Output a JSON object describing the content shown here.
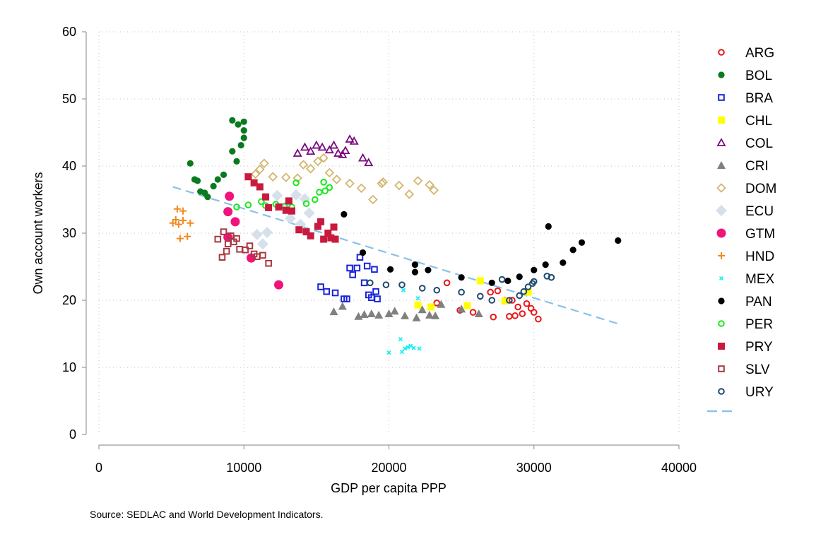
{
  "source_note": "Source: SEDLAC and World Development Indicators.",
  "chart_data": {
    "type": "scatter",
    "title": "",
    "xlabel": "GDP per capita PPP",
    "ylabel": "Own account workers",
    "xlim": [
      0,
      40000
    ],
    "ylim": [
      0,
      60
    ],
    "xticks": [
      0,
      10000,
      20000,
      30000,
      40000
    ],
    "yticks": [
      0,
      10,
      20,
      30,
      40,
      50,
      60
    ],
    "grid": "dotted",
    "legend_position": "right",
    "series": [
      {
        "name": "ARG",
        "marker": "hollow-circle",
        "color": "#e8161b",
        "points": [
          [
            23300,
            19.6
          ],
          [
            24000,
            22.6
          ],
          [
            24900,
            18.5
          ],
          [
            25800,
            18.2
          ],
          [
            27000,
            21.2
          ],
          [
            27200,
            17.5
          ],
          [
            27500,
            21.4
          ],
          [
            28000,
            20.0
          ],
          [
            28300,
            17.6
          ],
          [
            28500,
            20.0
          ],
          [
            28700,
            17.7
          ],
          [
            28900,
            19.0
          ],
          [
            29200,
            18.0
          ],
          [
            29500,
            19.5
          ],
          [
            29800,
            18.8
          ],
          [
            30000,
            18.2
          ],
          [
            30300,
            17.2
          ]
        ]
      },
      {
        "name": "BOL",
        "marker": "circle",
        "color": "#0a7a1e",
        "points": [
          [
            6300,
            40.4
          ],
          [
            6600,
            38.0
          ],
          [
            6800,
            37.8
          ],
          [
            7000,
            36.2
          ],
          [
            7300,
            36.0
          ],
          [
            7500,
            35.4
          ],
          [
            7900,
            37.0
          ],
          [
            8200,
            38.0
          ],
          [
            8600,
            38.7
          ],
          [
            9000,
            35.4
          ],
          [
            9200,
            42.2
          ],
          [
            9200,
            46.8
          ],
          [
            9500,
            40.7
          ],
          [
            9600,
            46.2
          ],
          [
            9800,
            43.1
          ],
          [
            10000,
            46.6
          ],
          [
            10000,
            45.3
          ],
          [
            10000,
            44.2
          ]
        ]
      },
      {
        "name": "BRA",
        "marker": "hollow-square",
        "color": "#1a24d8",
        "points": [
          [
            15300,
            22.0
          ],
          [
            15700,
            21.3
          ],
          [
            16300,
            21.1
          ],
          [
            16900,
            20.2
          ],
          [
            17100,
            20.2
          ],
          [
            17300,
            24.8
          ],
          [
            17500,
            23.8
          ],
          [
            17800,
            24.8
          ],
          [
            18000,
            26.4
          ],
          [
            18300,
            22.6
          ],
          [
            18500,
            25.1
          ],
          [
            18600,
            20.8
          ],
          [
            18800,
            20.4
          ],
          [
            19000,
            24.6
          ],
          [
            19100,
            21.3
          ],
          [
            19200,
            20.2
          ]
        ]
      },
      {
        "name": "CHL",
        "marker": "square",
        "color": "#ffff00",
        "points": [
          [
            22000,
            19.3
          ],
          [
            22900,
            19.0
          ],
          [
            25400,
            19.2
          ],
          [
            26300,
            22.9
          ],
          [
            28000,
            19.9
          ],
          [
            29600,
            21.2
          ]
        ]
      },
      {
        "name": "COL",
        "marker": "hollow-triangle",
        "color": "#7a0a7e",
        "points": [
          [
            13700,
            41.9
          ],
          [
            14200,
            42.8
          ],
          [
            14600,
            42.2
          ],
          [
            15000,
            43.1
          ],
          [
            15400,
            42.8
          ],
          [
            15900,
            42.4
          ],
          [
            16200,
            43.1
          ],
          [
            16500,
            41.9
          ],
          [
            16800,
            41.7
          ],
          [
            17000,
            42.3
          ],
          [
            17300,
            44.0
          ],
          [
            17600,
            43.7
          ],
          [
            18200,
            41.2
          ],
          [
            18600,
            40.5
          ]
        ]
      },
      {
        "name": "CRI",
        "marker": "triangle",
        "color": "#808080",
        "points": [
          [
            16200,
            18.3
          ],
          [
            16800,
            19.1
          ],
          [
            17900,
            17.6
          ],
          [
            18300,
            17.9
          ],
          [
            18800,
            18.0
          ],
          [
            19300,
            17.8
          ],
          [
            20000,
            18.0
          ],
          [
            20400,
            18.4
          ],
          [
            21100,
            17.7
          ],
          [
            21900,
            17.4
          ],
          [
            22300,
            18.6
          ],
          [
            22800,
            17.8
          ],
          [
            23200,
            17.7
          ],
          [
            23600,
            19.4
          ],
          [
            25000,
            18.7
          ],
          [
            26200,
            18.0
          ]
        ]
      },
      {
        "name": "DOM",
        "marker": "hollow-diamond",
        "color": "#d2b66e",
        "points": [
          [
            10800,
            38.8
          ],
          [
            11100,
            39.5
          ],
          [
            11400,
            40.4
          ],
          [
            12000,
            38.4
          ],
          [
            12900,
            38.3
          ],
          [
            13700,
            38.2
          ],
          [
            14100,
            40.2
          ],
          [
            14600,
            39.6
          ],
          [
            15100,
            40.7
          ],
          [
            15500,
            41.2
          ],
          [
            15900,
            39.0
          ],
          [
            16400,
            38.0
          ],
          [
            17300,
            37.4
          ],
          [
            18100,
            36.7
          ],
          [
            18900,
            35.0
          ],
          [
            19500,
            37.4
          ],
          [
            19600,
            37.6
          ],
          [
            20700,
            37.1
          ],
          [
            21400,
            35.8
          ],
          [
            22000,
            37.8
          ],
          [
            22800,
            37.2
          ],
          [
            23100,
            36.4
          ]
        ]
      },
      {
        "name": "ECU",
        "marker": "diamond",
        "color": "#d6e0ea",
        "points": [
          [
            10900,
            29.8
          ],
          [
            11300,
            28.4
          ],
          [
            11600,
            30.1
          ],
          [
            12300,
            35.6
          ],
          [
            12900,
            34.0
          ],
          [
            13200,
            32.2
          ],
          [
            13600,
            35.7
          ],
          [
            13900,
            31.3
          ],
          [
            14200,
            35.1
          ],
          [
            14500,
            33.0
          ]
        ]
      },
      {
        "name": "GTM",
        "marker": "big-circle",
        "color": "#f0147a",
        "points": [
          [
            8900,
            33.2
          ],
          [
            8900,
            29.4
          ],
          [
            9000,
            35.5
          ],
          [
            9400,
            31.7
          ],
          [
            10500,
            26.3
          ],
          [
            12400,
            22.3
          ]
        ]
      },
      {
        "name": "HND",
        "marker": "plus",
        "color": "#f28a1e",
        "points": [
          [
            5100,
            31.5
          ],
          [
            5300,
            32.0
          ],
          [
            5400,
            33.6
          ],
          [
            5500,
            31.3
          ],
          [
            5600,
            29.2
          ],
          [
            5800,
            33.3
          ],
          [
            5800,
            31.9
          ],
          [
            6100,
            29.5
          ],
          [
            6300,
            31.5
          ]
        ]
      },
      {
        "name": "MEX",
        "marker": "x",
        "color": "#1ef0f0",
        "points": [
          [
            20000,
            12.2
          ],
          [
            20800,
            14.2
          ],
          [
            20900,
            12.3
          ],
          [
            21100,
            12.8
          ],
          [
            21300,
            13.0
          ],
          [
            21500,
            13.2
          ],
          [
            21700,
            12.9
          ],
          [
            22100,
            12.8
          ],
          [
            21000,
            21.5
          ],
          [
            22000,
            20.3
          ]
        ]
      },
      {
        "name": "PAN",
        "marker": "circle",
        "color": "#000000",
        "points": [
          [
            16900,
            32.8
          ],
          [
            18200,
            27.1
          ],
          [
            20100,
            24.6
          ],
          [
            21800,
            25.3
          ],
          [
            21800,
            24.2
          ],
          [
            22700,
            24.5
          ],
          [
            25000,
            23.4
          ],
          [
            27100,
            22.6
          ],
          [
            28200,
            22.9
          ],
          [
            29000,
            23.5
          ],
          [
            30000,
            24.5
          ],
          [
            30800,
            25.3
          ],
          [
            31000,
            31.0
          ],
          [
            32000,
            25.6
          ],
          [
            32700,
            27.5
          ],
          [
            33300,
            28.6
          ],
          [
            35800,
            28.9
          ]
        ]
      },
      {
        "name": "PER",
        "marker": "hollow-circle",
        "color": "#19e81e",
        "points": [
          [
            9500,
            33.9
          ],
          [
            10300,
            34.2
          ],
          [
            11200,
            34.7
          ],
          [
            11500,
            34.1
          ],
          [
            12200,
            34.3
          ],
          [
            12800,
            34.0
          ],
          [
            13300,
            33.9
          ],
          [
            13600,
            37.5
          ],
          [
            14300,
            34.4
          ],
          [
            14900,
            35.0
          ],
          [
            15200,
            36.1
          ],
          [
            15500,
            37.6
          ],
          [
            15600,
            36.3
          ],
          [
            15900,
            36.8
          ]
        ]
      },
      {
        "name": "PRY",
        "marker": "square",
        "color": "#c81a3e",
        "points": [
          [
            10300,
            38.4
          ],
          [
            10700,
            37.5
          ],
          [
            11100,
            36.9
          ],
          [
            11500,
            35.4
          ],
          [
            11700,
            33.8
          ],
          [
            12400,
            33.9
          ],
          [
            12900,
            33.4
          ],
          [
            13100,
            34.8
          ],
          [
            13300,
            33.3
          ],
          [
            13800,
            30.5
          ],
          [
            14300,
            30.2
          ],
          [
            14600,
            29.6
          ],
          [
            15100,
            31.0
          ],
          [
            15300,
            31.7
          ],
          [
            15500,
            29.1
          ],
          [
            15800,
            30.0
          ],
          [
            16000,
            29.3
          ],
          [
            16200,
            30.9
          ],
          [
            16300,
            29.1
          ]
        ]
      },
      {
        "name": "SLV",
        "marker": "hollow-square",
        "color": "#a83840",
        "points": [
          [
            8200,
            29.1
          ],
          [
            8500,
            26.4
          ],
          [
            8600,
            30.2
          ],
          [
            8800,
            27.3
          ],
          [
            8900,
            28.4
          ],
          [
            9100,
            29.6
          ],
          [
            9300,
            28.7
          ],
          [
            9500,
            29.2
          ],
          [
            9700,
            27.6
          ],
          [
            10100,
            27.5
          ],
          [
            10400,
            28.1
          ],
          [
            10700,
            26.9
          ],
          [
            10900,
            26.5
          ],
          [
            11300,
            26.7
          ],
          [
            11700,
            25.5
          ]
        ]
      },
      {
        "name": "URY",
        "marker": "hollow-circle",
        "color": "#1e4a6e",
        "points": [
          [
            18700,
            22.6
          ],
          [
            19800,
            22.3
          ],
          [
            20900,
            22.3
          ],
          [
            22300,
            21.8
          ],
          [
            23300,
            21.5
          ],
          [
            25000,
            21.2
          ],
          [
            26300,
            20.6
          ],
          [
            27100,
            20.0
          ],
          [
            27800,
            23.1
          ],
          [
            28300,
            20.0
          ],
          [
            29000,
            20.7
          ],
          [
            29300,
            21.3
          ],
          [
            29600,
            22.0
          ],
          [
            29900,
            22.5
          ],
          [
            30000,
            22.8
          ],
          [
            30900,
            23.6
          ],
          [
            31200,
            23.4
          ]
        ]
      }
    ],
    "fit_line": {
      "x": [
        5100,
        35800
      ],
      "y": [
        36.9,
        16.5
      ],
      "color": "#87c2e8",
      "style": "dashed"
    }
  }
}
